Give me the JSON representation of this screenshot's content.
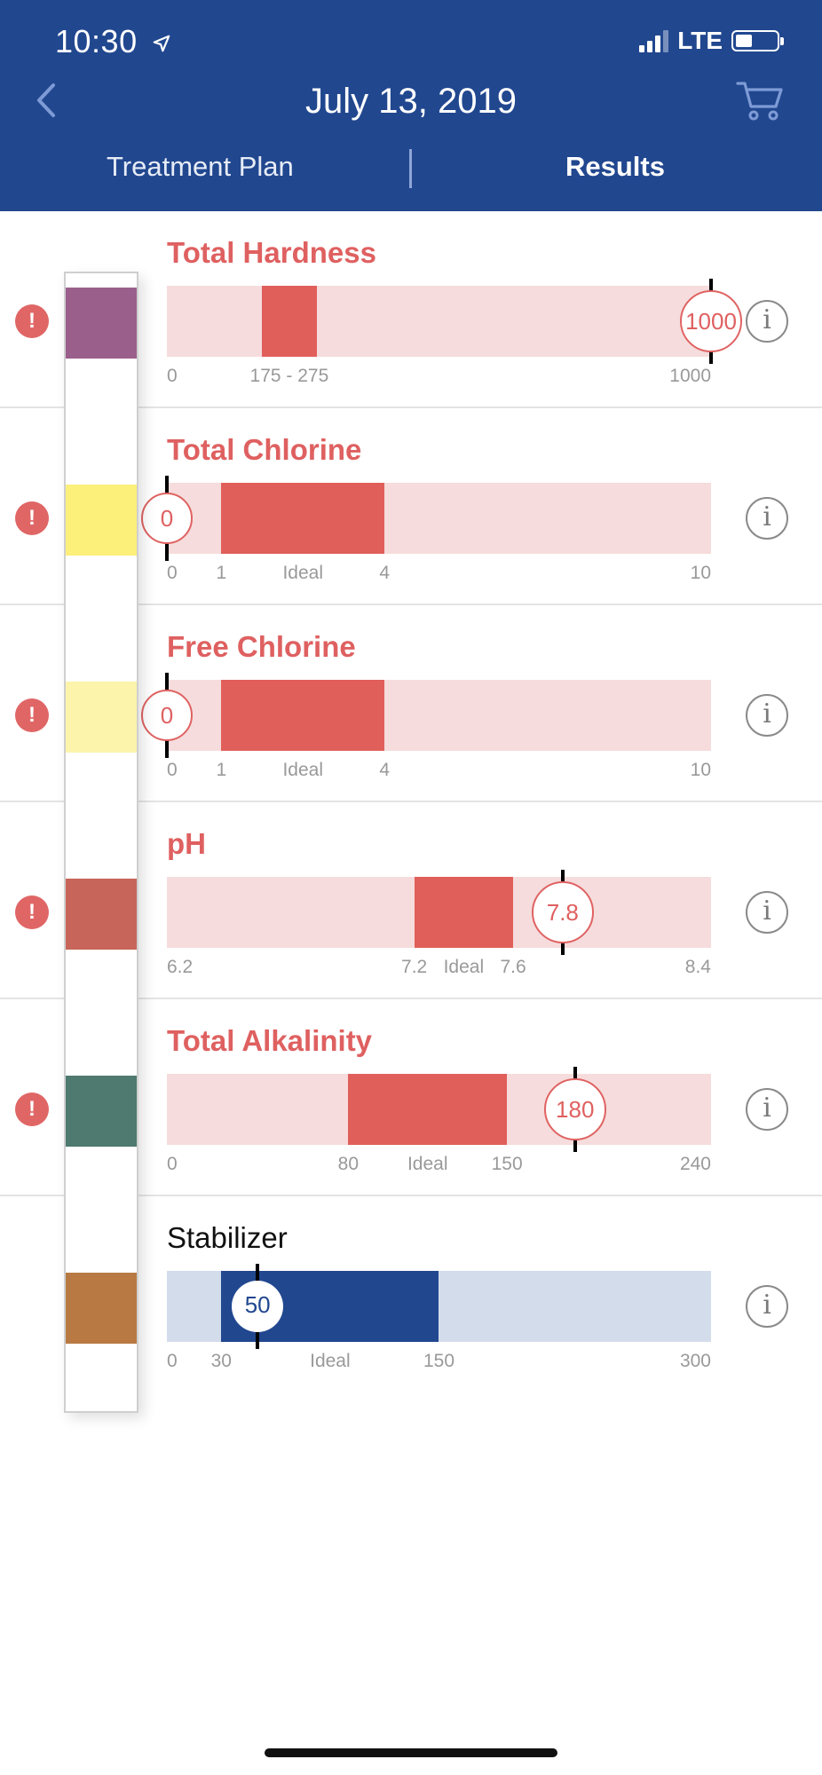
{
  "status_bar": {
    "time": "10:30",
    "network": "LTE"
  },
  "header": {
    "title": "July 13, 2019"
  },
  "tabs": [
    {
      "label": "Treatment Plan",
      "active": false
    },
    {
      "label": "Results",
      "active": true
    }
  ],
  "results": [
    {
      "name": "Total Hardness",
      "value": "1000",
      "alert": "!",
      "status": "out-of-range",
      "ideal_label": "175 - 275",
      "min": 0,
      "max": 1000,
      "ideal_low": 175,
      "ideal_high": 275,
      "reading": 1000,
      "scale": [
        "0",
        "1000"
      ],
      "strip_color": "#9b5f8c"
    },
    {
      "name": "Total Chlorine",
      "value": "0",
      "alert": "!",
      "status": "out-of-range",
      "ideal_label": "Ideal",
      "min": 0,
      "max": 10,
      "ideal_low": 1,
      "ideal_high": 4,
      "reading": 0,
      "scale": [
        "0",
        "1",
        "4",
        "10"
      ],
      "strip_color": "#fcef7a"
    },
    {
      "name": "Free Chlorine",
      "value": "0",
      "alert": "!",
      "status": "out-of-range",
      "ideal_label": "Ideal",
      "min": 0,
      "max": 10,
      "ideal_low": 1,
      "ideal_high": 4,
      "reading": 0,
      "scale": [
        "0",
        "1",
        "4",
        "10"
      ],
      "strip_color": "#fbf4aa"
    },
    {
      "name": "pH",
      "value": "7.8",
      "alert": "!",
      "status": "out-of-range",
      "ideal_label": "Ideal",
      "min": 6.2,
      "max": 8.4,
      "ideal_low": 7.2,
      "ideal_high": 7.6,
      "reading": 7.8,
      "scale": [
        "6.2",
        "7.2",
        "7.6",
        "8.4"
      ],
      "strip_color": "#c8655a"
    },
    {
      "name": "Total Alkalinity",
      "value": "180",
      "alert": "!",
      "status": "out-of-range",
      "ideal_label": "Ideal",
      "min": 0,
      "max": 240,
      "ideal_low": 80,
      "ideal_high": 150,
      "reading": 180,
      "scale": [
        "0",
        "80",
        "150",
        "240"
      ],
      "strip_color": "#4e7a70"
    },
    {
      "name": "Stabilizer",
      "value": "50",
      "alert": "",
      "status": "in-range",
      "ideal_label": "Ideal",
      "min": 0,
      "max": 300,
      "ideal_low": 30,
      "ideal_high": 150,
      "reading": 50,
      "scale": [
        "0",
        "30",
        "150",
        "300"
      ],
      "strip_color": "#b87a42"
    }
  ],
  "info_glyph": "i",
  "icons": {
    "back": "chevron-left-icon",
    "cart": "shopping-cart-icon",
    "location": "location-arrow-icon",
    "info": "info-icon",
    "alert": "exclamation-icon"
  },
  "colors": {
    "header_bg": "#21478f",
    "alert_red": "#df6060",
    "ideal_red": "#e05f5a",
    "track_red": "#f6dcdc",
    "ideal_blue": "#21478f",
    "track_blue": "#d2dceb"
  }
}
